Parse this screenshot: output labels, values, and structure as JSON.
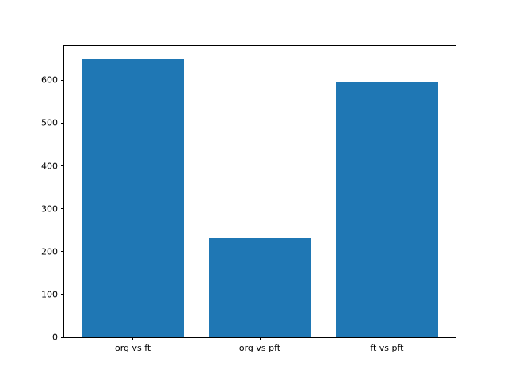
{
  "figure": {
    "background": "#ffffff",
    "axes_background": "#ffffff",
    "spine_color": "#000000",
    "tick_color": "#000000",
    "tick_label_color": "#000000"
  },
  "chart_data": {
    "type": "bar",
    "categories": [
      "org vs ft",
      "org vs pft",
      "ft vs pft"
    ],
    "values": [
      648,
      233,
      597
    ],
    "title": "",
    "xlabel": "",
    "ylabel": "",
    "ylim": [
      0,
      680
    ],
    "xlim": [
      -0.54,
      2.54
    ],
    "yticks": [
      0,
      100,
      200,
      300,
      400,
      500,
      600
    ],
    "bar_color": "#1f77b4",
    "bar_width_fraction": 0.8,
    "grid": false,
    "legend": "none"
  }
}
